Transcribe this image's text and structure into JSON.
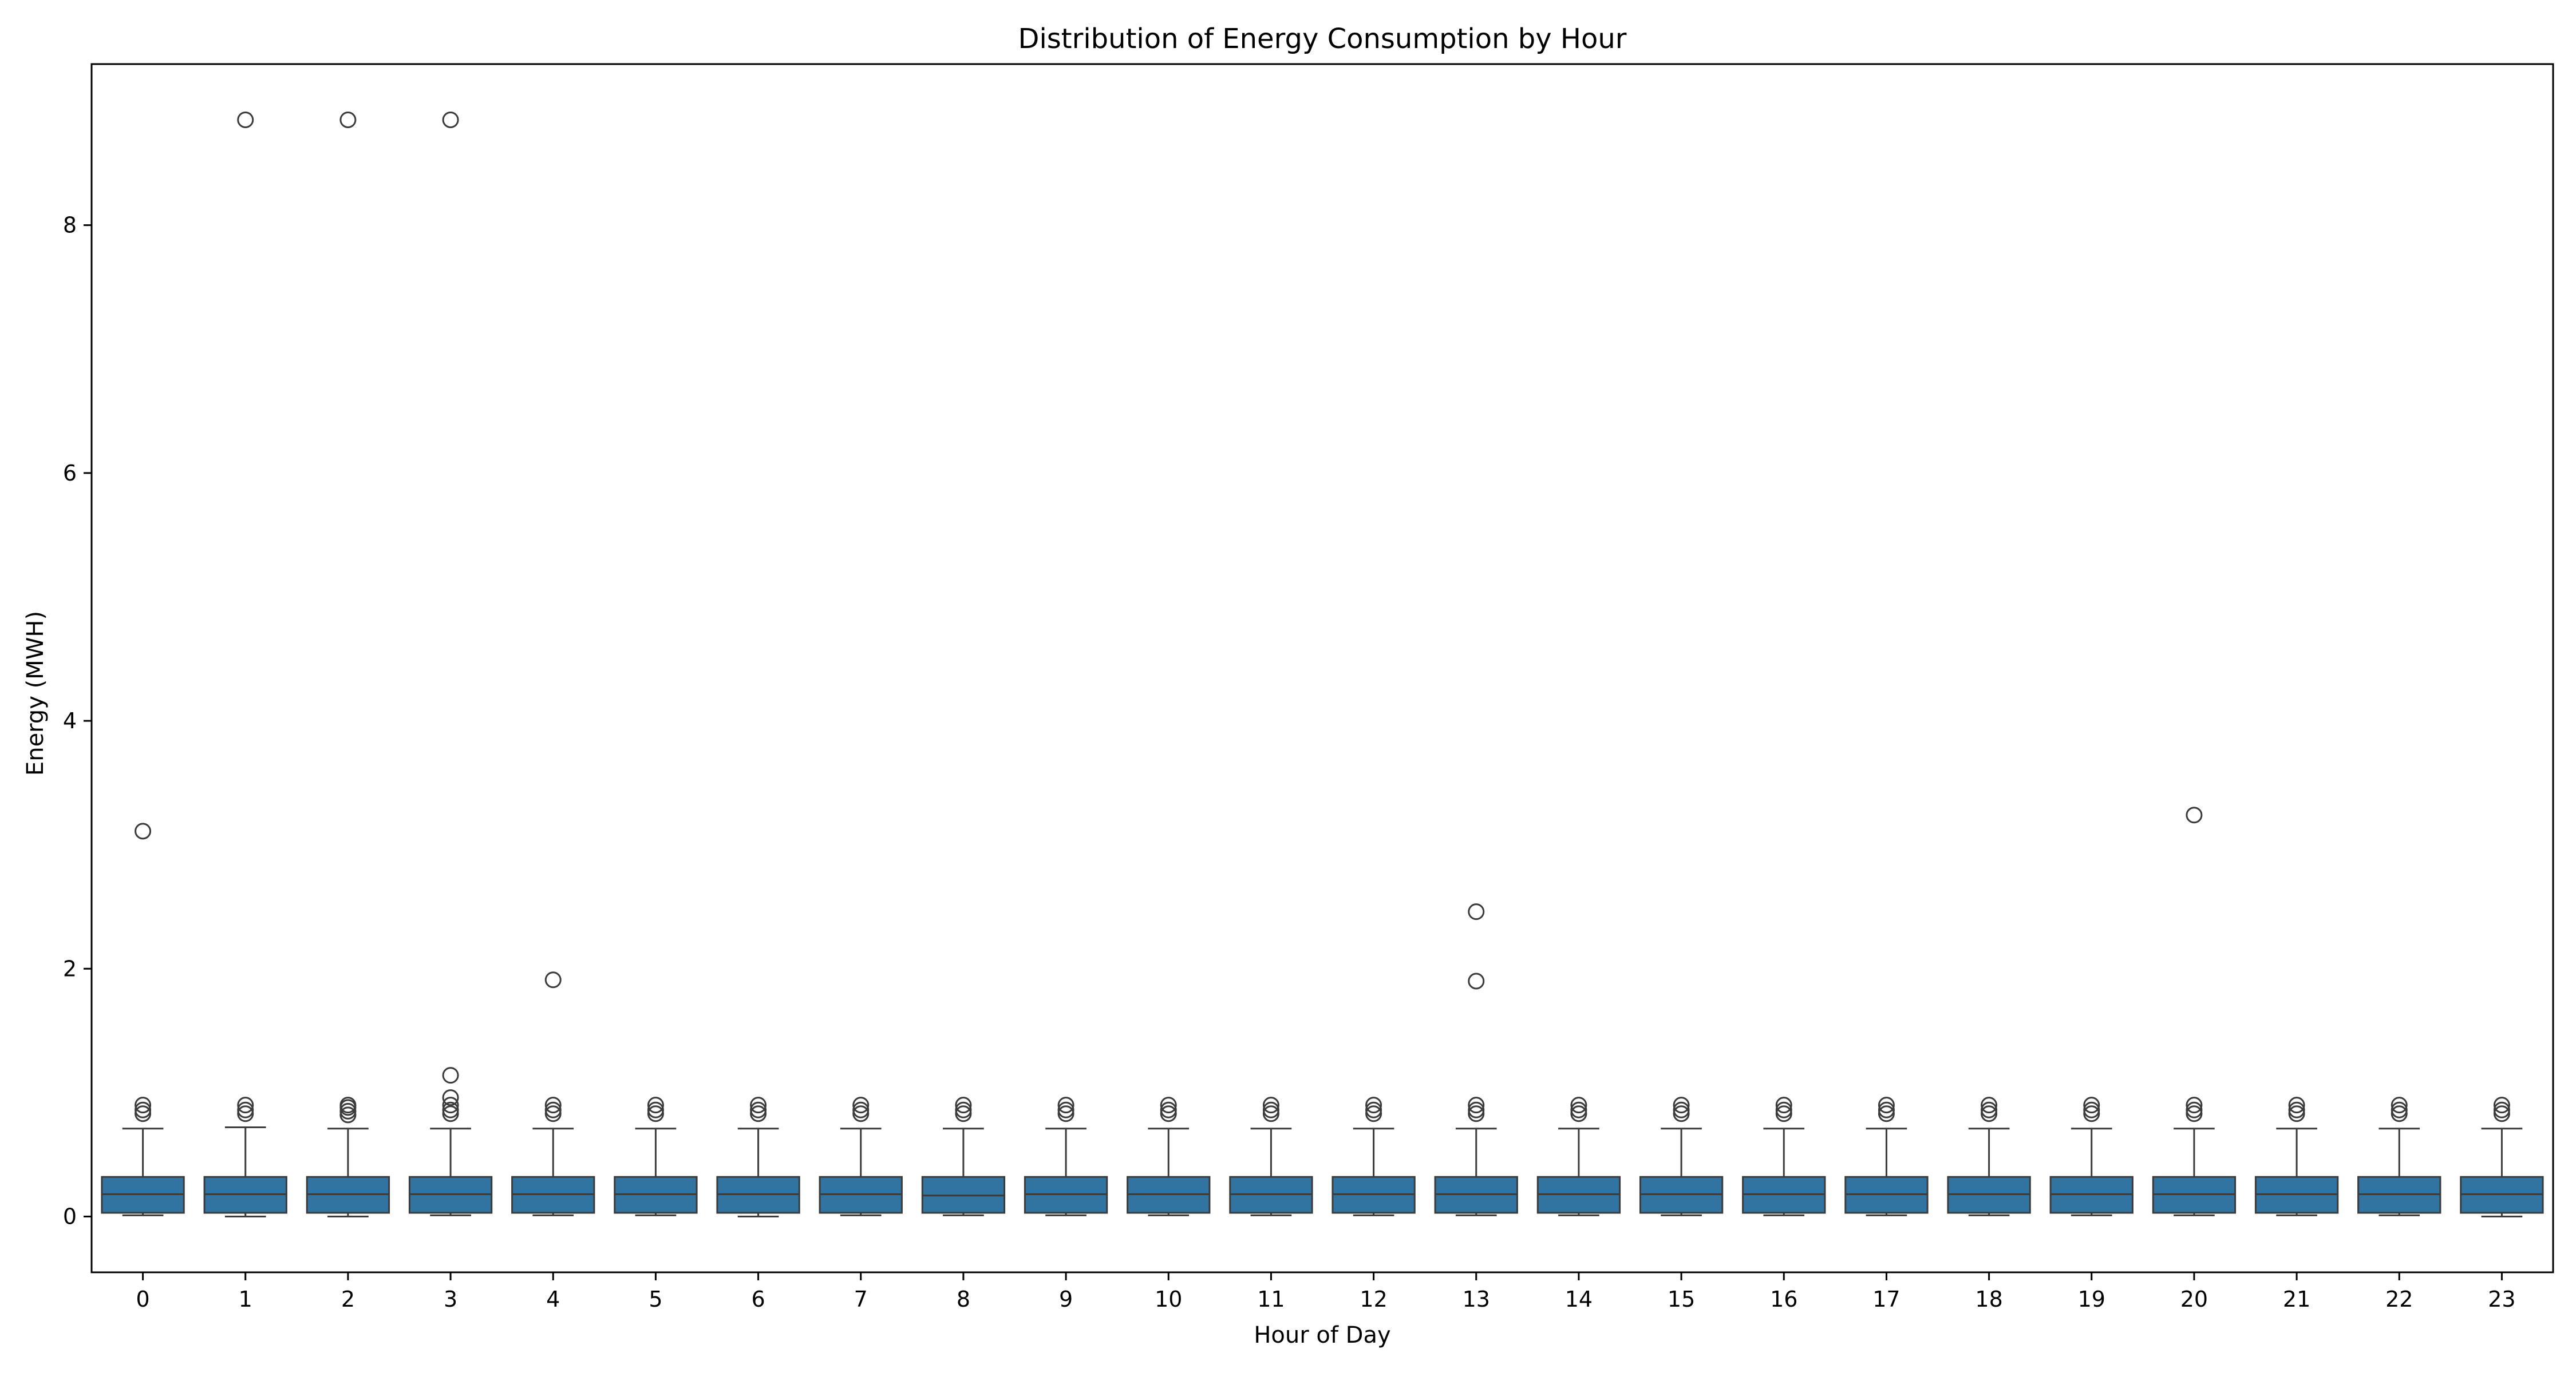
{
  "chart_data": {
    "type": "box",
    "title": "Distribution of Energy Consumption by Hour",
    "xlabel": "Hour of Day",
    "ylabel": "Energy (MWH)",
    "ylim": [
      -0.45,
      9.3
    ],
    "yticks": [
      0,
      2,
      4,
      6,
      8
    ],
    "grid": false,
    "legend": "none",
    "box_color": "#3274a1",
    "edge_color": "#3b3b3b",
    "categories": [
      "0",
      "1",
      "2",
      "3",
      "4",
      "5",
      "6",
      "7",
      "8",
      "9",
      "10",
      "11",
      "12",
      "13",
      "14",
      "15",
      "16",
      "17",
      "18",
      "19",
      "20",
      "21",
      "22",
      "23"
    ],
    "boxes": [
      {
        "hour": "0",
        "whislo": 0.01,
        "q1": 0.03,
        "med": 0.18,
        "q3": 0.32,
        "whishi": 0.71,
        "fliers": [
          0.83,
          0.86,
          0.9,
          3.11
        ]
      },
      {
        "hour": "1",
        "whislo": 0.0,
        "q1": 0.03,
        "med": 0.18,
        "q3": 0.32,
        "whishi": 0.72,
        "fliers": [
          0.83,
          0.86,
          0.9,
          8.85
        ]
      },
      {
        "hour": "2",
        "whislo": 0.0,
        "q1": 0.03,
        "med": 0.18,
        "q3": 0.32,
        "whishi": 0.71,
        "fliers": [
          0.82,
          0.85,
          0.88,
          0.9,
          8.85
        ]
      },
      {
        "hour": "3",
        "whislo": 0.01,
        "q1": 0.03,
        "med": 0.18,
        "q3": 0.32,
        "whishi": 0.71,
        "fliers": [
          0.83,
          0.86,
          0.9,
          0.96,
          1.14,
          8.85
        ]
      },
      {
        "hour": "4",
        "whislo": 0.01,
        "q1": 0.03,
        "med": 0.18,
        "q3": 0.32,
        "whishi": 0.71,
        "fliers": [
          0.83,
          0.86,
          0.9,
          1.91
        ]
      },
      {
        "hour": "5",
        "whislo": 0.01,
        "q1": 0.03,
        "med": 0.18,
        "q3": 0.32,
        "whishi": 0.71,
        "fliers": [
          0.83,
          0.86,
          0.9
        ]
      },
      {
        "hour": "6",
        "whislo": 0.0,
        "q1": 0.03,
        "med": 0.18,
        "q3": 0.32,
        "whishi": 0.71,
        "fliers": [
          0.83,
          0.86,
          0.9
        ]
      },
      {
        "hour": "7",
        "whislo": 0.01,
        "q1": 0.03,
        "med": 0.18,
        "q3": 0.32,
        "whishi": 0.71,
        "fliers": [
          0.83,
          0.86,
          0.9
        ]
      },
      {
        "hour": "8",
        "whislo": 0.01,
        "q1": 0.03,
        "med": 0.17,
        "q3": 0.32,
        "whishi": 0.71,
        "fliers": [
          0.83,
          0.86,
          0.9
        ]
      },
      {
        "hour": "9",
        "whislo": 0.01,
        "q1": 0.03,
        "med": 0.18,
        "q3": 0.32,
        "whishi": 0.71,
        "fliers": [
          0.83,
          0.86,
          0.9
        ]
      },
      {
        "hour": "10",
        "whislo": 0.01,
        "q1": 0.03,
        "med": 0.18,
        "q3": 0.32,
        "whishi": 0.71,
        "fliers": [
          0.83,
          0.86,
          0.9
        ]
      },
      {
        "hour": "11",
        "whislo": 0.01,
        "q1": 0.03,
        "med": 0.18,
        "q3": 0.32,
        "whishi": 0.71,
        "fliers": [
          0.83,
          0.86,
          0.9
        ]
      },
      {
        "hour": "12",
        "whislo": 0.01,
        "q1": 0.03,
        "med": 0.18,
        "q3": 0.32,
        "whishi": 0.71,
        "fliers": [
          0.83,
          0.86,
          0.9
        ]
      },
      {
        "hour": "13",
        "whislo": 0.01,
        "q1": 0.03,
        "med": 0.18,
        "q3": 0.32,
        "whishi": 0.71,
        "fliers": [
          0.83,
          0.86,
          0.9,
          1.9,
          2.46
        ]
      },
      {
        "hour": "14",
        "whislo": 0.01,
        "q1": 0.03,
        "med": 0.18,
        "q3": 0.32,
        "whishi": 0.71,
        "fliers": [
          0.83,
          0.86,
          0.9
        ]
      },
      {
        "hour": "15",
        "whislo": 0.01,
        "q1": 0.03,
        "med": 0.18,
        "q3": 0.32,
        "whishi": 0.71,
        "fliers": [
          0.83,
          0.86,
          0.9
        ]
      },
      {
        "hour": "16",
        "whislo": 0.01,
        "q1": 0.03,
        "med": 0.18,
        "q3": 0.32,
        "whishi": 0.71,
        "fliers": [
          0.83,
          0.86,
          0.9
        ]
      },
      {
        "hour": "17",
        "whislo": 0.01,
        "q1": 0.03,
        "med": 0.18,
        "q3": 0.32,
        "whishi": 0.71,
        "fliers": [
          0.83,
          0.86,
          0.9
        ]
      },
      {
        "hour": "18",
        "whislo": 0.01,
        "q1": 0.03,
        "med": 0.18,
        "q3": 0.32,
        "whishi": 0.71,
        "fliers": [
          0.83,
          0.86,
          0.9
        ]
      },
      {
        "hour": "19",
        "whislo": 0.01,
        "q1": 0.03,
        "med": 0.18,
        "q3": 0.32,
        "whishi": 0.71,
        "fliers": [
          0.83,
          0.86,
          0.9
        ]
      },
      {
        "hour": "20",
        "whislo": 0.01,
        "q1": 0.03,
        "med": 0.18,
        "q3": 0.32,
        "whishi": 0.71,
        "fliers": [
          0.83,
          0.86,
          0.9,
          3.24
        ]
      },
      {
        "hour": "21",
        "whislo": 0.01,
        "q1": 0.03,
        "med": 0.18,
        "q3": 0.32,
        "whishi": 0.71,
        "fliers": [
          0.83,
          0.86,
          0.9
        ]
      },
      {
        "hour": "22",
        "whislo": 0.01,
        "q1": 0.03,
        "med": 0.18,
        "q3": 0.32,
        "whishi": 0.71,
        "fliers": [
          0.83,
          0.86,
          0.9
        ]
      },
      {
        "hour": "23",
        "whislo": 0.0,
        "q1": 0.03,
        "med": 0.18,
        "q3": 0.32,
        "whishi": 0.71,
        "fliers": [
          0.83,
          0.86,
          0.9
        ]
      }
    ]
  }
}
